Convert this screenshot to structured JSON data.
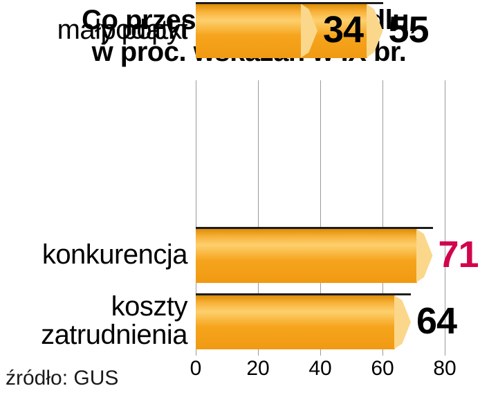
{
  "title_line1": "Co przeszkadza w handlu,",
  "title_line2": "w proc. wskazań w IX br.",
  "source": "źródło: GUS",
  "chart_data": {
    "type": "bar",
    "orientation": "horizontal",
    "title": "Co przeszkadza w handlu, w proc. wskazań w IX br.",
    "categories": [
      "konkurencja",
      "koszty zatrudnienia",
      "podatki",
      "mały popyt"
    ],
    "values": [
      71,
      64,
      55,
      34
    ],
    "value_colors": [
      "#d2044d",
      "#000000",
      "#000000",
      "#000000"
    ],
    "xlim": [
      0,
      80
    ],
    "xticks": [
      0,
      20,
      40,
      60,
      80
    ],
    "grid": true,
    "legend": "none",
    "source": "źródło: GUS",
    "colors": {
      "bar_main": "#f6a41d",
      "bar_light": "#f8b23a",
      "bar_lighter": "#fdd06e",
      "bar_dark": "#f09a12",
      "bar_cap": "#fbd78b",
      "grid": "#9a9a9a",
      "highlight_value": "#d2044d"
    }
  }
}
